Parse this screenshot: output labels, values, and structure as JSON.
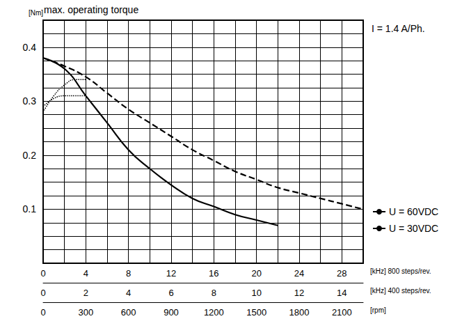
{
  "chart_data": {
    "type": "line",
    "title": "max. operating torque",
    "y_label": "[Nm]",
    "annotation": "I = 1.4 A/Ph.",
    "ylim": [
      0,
      0.45
    ],
    "yticks": [
      0.1,
      0.2,
      0.3,
      0.4
    ],
    "grid": true,
    "legend": "right",
    "x_axes": [
      {
        "label": "[kHz] 800 steps/rev.",
        "xlim": [
          0,
          30
        ],
        "xticks": [
          0,
          4,
          8,
          12,
          16,
          20,
          24,
          28
        ]
      },
      {
        "label": "[kHz] 400 steps/rev.",
        "xlim": [
          0,
          15
        ],
        "xticks": [
          0,
          2,
          4,
          6,
          8,
          10,
          12,
          14
        ]
      },
      {
        "label": "[rpm]",
        "xlim": [
          0,
          2250
        ],
        "xticks": [
          0,
          300,
          600,
          900,
          1200,
          1500,
          1800,
          2100
        ]
      }
    ],
    "series": [
      {
        "name": "U = 60VDC",
        "color": "#000000",
        "line_style": "dashed",
        "x": [
          0,
          2,
          4,
          6,
          8,
          10,
          12,
          14,
          16,
          18,
          20,
          22,
          24,
          26,
          28,
          30
        ],
        "values": [
          0.38,
          0.365,
          0.345,
          0.315,
          0.285,
          0.26,
          0.235,
          0.21,
          0.19,
          0.17,
          0.155,
          0.14,
          0.13,
          0.12,
          0.11,
          0.1
        ]
      },
      {
        "name": "U = 30VDC",
        "color": "#000000",
        "line_style": "solid",
        "x": [
          0,
          2,
          4,
          6,
          8,
          10,
          12,
          14,
          16,
          18,
          20,
          22
        ],
        "values": [
          0.38,
          0.36,
          0.31,
          0.26,
          0.21,
          0.175,
          0.145,
          0.12,
          0.105,
          0.09,
          0.08,
          0.07
        ]
      },
      {
        "color": "#000000",
        "line_style": "dotted",
        "x": [
          0,
          1,
          2,
          3,
          4
        ],
        "values": [
          0.28,
          0.31,
          0.33,
          0.34,
          0.34
        ]
      },
      {
        "color": "#000000",
        "line_style": "dotted",
        "x": [
          0,
          1,
          2,
          3,
          4
        ],
        "values": [
          0.29,
          0.305,
          0.31,
          0.31,
          0.31
        ]
      }
    ]
  }
}
